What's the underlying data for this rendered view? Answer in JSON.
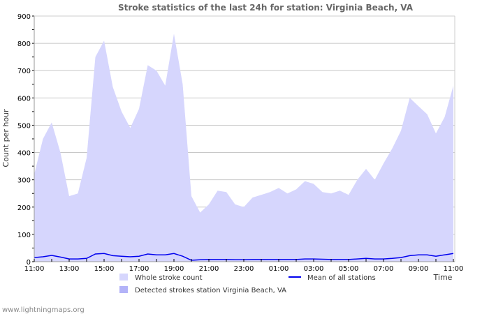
{
  "chart_data": {
    "type": "area",
    "title": "Stroke statistics of the last 24h for station: Virginia Beach, VA",
    "xlabel": "Time",
    "ylabel": "Count per hour",
    "ylim": [
      0,
      900
    ],
    "yticks": [
      "0",
      "100",
      "200",
      "300",
      "400",
      "500",
      "600",
      "700",
      "800",
      "900"
    ],
    "xticks": [
      "11:00",
      "13:00",
      "15:00",
      "17:00",
      "19:00",
      "21:00",
      "23:00",
      "01:00",
      "03:00",
      "05:00",
      "07:00",
      "09:00",
      "11:00"
    ],
    "x_step_hours": 0.5,
    "grid": true,
    "legend_position": "bottom",
    "series": [
      {
        "name": "Whole stroke count",
        "color": "#d6d6fd",
        "kind": "area",
        "values": [
          320,
          450,
          510,
          400,
          240,
          250,
          380,
          750,
          810,
          640,
          550,
          490,
          560,
          720,
          700,
          645,
          835,
          650,
          240,
          180,
          210,
          260,
          255,
          210,
          200,
          235,
          245,
          255,
          270,
          250,
          265,
          295,
          285,
          255,
          250,
          260,
          245,
          300,
          340,
          300,
          360,
          415,
          480,
          600,
          570,
          540,
          470,
          530,
          645
        ]
      },
      {
        "name": "Detected strokes station Virginia Beach, VA",
        "color": "#b3b3f8",
        "kind": "area",
        "values": [
          0,
          0,
          0,
          0,
          0,
          0,
          0,
          0,
          0,
          0,
          0,
          0,
          0,
          0,
          0,
          0,
          0,
          0,
          0,
          0,
          0,
          0,
          0,
          0,
          0,
          0,
          0,
          0,
          0,
          0,
          0,
          0,
          0,
          0,
          0,
          0,
          0,
          0,
          0,
          0,
          0,
          0,
          0,
          0,
          0,
          0,
          0,
          0,
          0
        ]
      },
      {
        "name": "Mean of all stations",
        "color": "#0000ee",
        "kind": "line",
        "values": [
          15,
          18,
          23,
          17,
          10,
          10,
          12,
          28,
          30,
          22,
          20,
          18,
          20,
          28,
          25,
          25,
          30,
          20,
          5,
          7,
          8,
          8,
          8,
          7,
          7,
          8,
          8,
          8,
          8,
          8,
          8,
          10,
          10,
          9,
          8,
          8,
          8,
          10,
          12,
          10,
          10,
          12,
          15,
          22,
          25,
          25,
          20,
          25,
          30
        ]
      }
    ]
  },
  "footer": "www.lightningmaps.org"
}
